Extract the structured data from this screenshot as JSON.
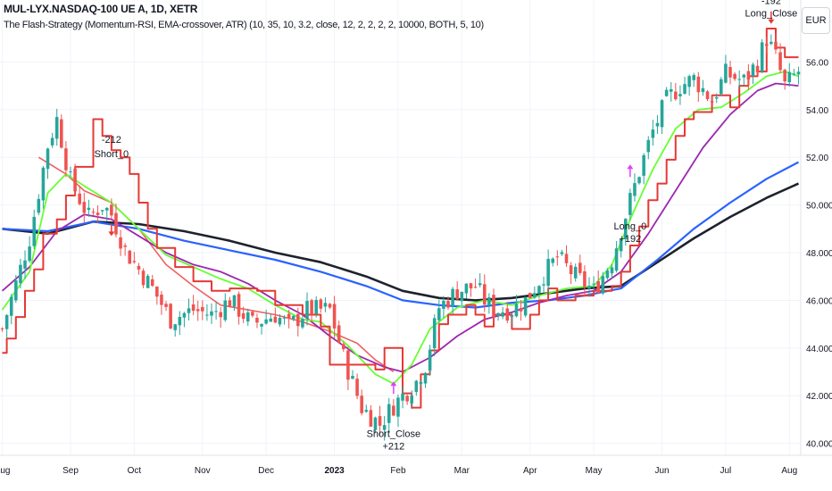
{
  "header": {
    "title": "MUL-LYX.NASDAQ-100 UE A, 1D, XETR",
    "subtitle": "The Flash-Strategy (Momentum-RSI, EMA-crossover, ATR) (10, 35, 10, 3.2, close, 12, 2, 2, 2, 2, 10000, BOTH, 5, 10)",
    "currency": "EUR"
  },
  "colors": {
    "up": "#26a69a",
    "down": "#ef5350",
    "ema_fast": "#66ff33",
    "ema_mid": "#9c27b0",
    "ema_slow": "#2962ff",
    "ema_long": "#1e222d",
    "stop": "#e53935",
    "stop_light": "#f06060",
    "marker": "#e040fb",
    "label": "#131722",
    "axis": "#131722",
    "grid": "#f0f3fa"
  },
  "chart_data": {
    "type": "candlestick",
    "title": "MUL-LYX.NASDAQ-100 UE A, 1D, XETR",
    "ylim": [
      39.5,
      58.6
    ],
    "y_ticks": [
      "40.000",
      "42.000",
      "44.000",
      "46.000",
      "48.000",
      "50.000",
      "52.00",
      "54.00",
      "56.00"
    ],
    "x_ticks": [
      "Aug",
      "Sep",
      "Oct",
      "Nov",
      "Dec",
      "2023",
      "Feb",
      "Mar",
      "Apr",
      "May",
      "Jun",
      "Jul",
      "Aug"
    ],
    "ohlc_anchor_closes": [
      [
        0,
        44.8
      ],
      [
        6,
        48.6
      ],
      [
        10,
        52.5
      ],
      [
        12,
        53.6
      ],
      [
        15,
        51.0
      ],
      [
        19,
        49.5
      ],
      [
        22,
        50.0
      ],
      [
        24,
        49.6
      ],
      [
        27,
        48.1
      ],
      [
        30,
        47.3
      ],
      [
        33,
        46.5
      ],
      [
        37,
        45.2
      ],
      [
        42,
        45.6
      ],
      [
        46,
        45.4
      ],
      [
        50,
        46.0
      ],
      [
        55,
        45.0
      ],
      [
        60,
        45.4
      ],
      [
        63,
        44.9
      ],
      [
        67,
        45.6
      ],
      [
        72,
        45.6
      ],
      [
        75,
        43.6
      ],
      [
        79,
        41.5
      ],
      [
        83,
        40.8
      ],
      [
        86,
        41.6
      ],
      [
        89,
        42.2
      ],
      [
        91,
        42.6
      ],
      [
        93,
        43.3
      ],
      [
        96,
        45.7
      ],
      [
        100,
        46.4
      ],
      [
        104,
        46.6
      ],
      [
        106,
        46.0
      ],
      [
        108,
        45.6
      ],
      [
        112,
        45.6
      ],
      [
        115,
        46.0
      ],
      [
        119,
        47.1
      ],
      [
        122,
        47.8
      ],
      [
        126,
        47.0
      ],
      [
        130,
        46.4
      ],
      [
        134,
        47.7
      ],
      [
        138,
        50.2
      ],
      [
        140,
        51.4
      ],
      [
        143,
        53.1
      ],
      [
        146,
        54.4
      ],
      [
        149,
        55.0
      ],
      [
        152,
        55.3
      ],
      [
        156,
        54.4
      ],
      [
        159,
        55.5
      ],
      [
        163,
        55.2
      ],
      [
        166,
        56.0
      ],
      [
        168,
        57.0
      ],
      [
        170,
        56.2
      ],
      [
        172,
        55.0
      ],
      [
        175,
        55.6
      ]
    ],
    "series": [
      {
        "name": "EMA fast (green)",
        "points": [
          [
            0,
            45.6
          ],
          [
            6,
            47.2
          ],
          [
            10,
            50.5
          ],
          [
            14,
            51.3
          ],
          [
            18,
            50.8
          ],
          [
            24,
            50.1
          ],
          [
            30,
            49.0
          ],
          [
            36,
            47.9
          ],
          [
            42,
            47.4
          ],
          [
            48,
            46.9
          ],
          [
            54,
            46.5
          ],
          [
            60,
            45.8
          ],
          [
            66,
            45.2
          ],
          [
            70,
            45.1
          ],
          [
            76,
            44.1
          ],
          [
            82,
            42.9
          ],
          [
            86,
            42.5
          ],
          [
            90,
            43.3
          ],
          [
            94,
            44.8
          ],
          [
            100,
            45.7
          ],
          [
            106,
            46.0
          ],
          [
            112,
            45.8
          ],
          [
            118,
            46.2
          ],
          [
            124,
            46.5
          ],
          [
            130,
            46.6
          ],
          [
            134,
            47.5
          ],
          [
            138,
            49.4
          ],
          [
            143,
            51.5
          ],
          [
            148,
            53.2
          ],
          [
            153,
            54.0
          ],
          [
            158,
            54.1
          ],
          [
            163,
            54.7
          ],
          [
            168,
            55.4
          ],
          [
            172,
            55.6
          ],
          [
            175,
            55.4
          ]
        ]
      },
      {
        "name": "EMA mid (purple)",
        "points": [
          [
            0,
            46.4
          ],
          [
            6,
            47.4
          ],
          [
            12,
            48.9
          ],
          [
            18,
            49.6
          ],
          [
            24,
            49.4
          ],
          [
            30,
            48.7
          ],
          [
            36,
            48.0
          ],
          [
            42,
            47.5
          ],
          [
            48,
            47.2
          ],
          [
            54,
            46.7
          ],
          [
            60,
            46.0
          ],
          [
            66,
            45.4
          ],
          [
            72,
            44.5
          ],
          [
            78,
            43.7
          ],
          [
            84,
            43.2
          ],
          [
            88,
            43.0
          ],
          [
            94,
            43.6
          ],
          [
            100,
            44.5
          ],
          [
            106,
            45.2
          ],
          [
            112,
            45.5
          ],
          [
            118,
            45.9
          ],
          [
            124,
            46.2
          ],
          [
            130,
            46.4
          ],
          [
            136,
            47.2
          ],
          [
            142,
            48.8
          ],
          [
            148,
            50.6
          ],
          [
            154,
            52.4
          ],
          [
            160,
            53.8
          ],
          [
            166,
            54.8
          ],
          [
            170,
            55.1
          ],
          [
            175,
            55.0
          ]
        ]
      },
      {
        "name": "EMA slow (blue)",
        "points": [
          [
            0,
            49.0
          ],
          [
            10,
            48.9
          ],
          [
            20,
            49.3
          ],
          [
            30,
            49.0
          ],
          [
            40,
            48.5
          ],
          [
            50,
            48.1
          ],
          [
            60,
            47.7
          ],
          [
            70,
            47.2
          ],
          [
            80,
            46.6
          ],
          [
            88,
            46.0
          ],
          [
            96,
            45.8
          ],
          [
            104,
            45.7
          ],
          [
            112,
            45.9
          ],
          [
            120,
            46.0
          ],
          [
            128,
            46.2
          ],
          [
            136,
            46.5
          ],
          [
            144,
            47.7
          ],
          [
            152,
            49.0
          ],
          [
            160,
            50.1
          ],
          [
            168,
            51.1
          ],
          [
            175,
            51.8
          ]
        ]
      },
      {
        "name": "EMA long (black)",
        "points": [
          [
            0,
            49.0
          ],
          [
            10,
            48.8
          ],
          [
            20,
            49.3
          ],
          [
            30,
            49.2
          ],
          [
            40,
            48.9
          ],
          [
            50,
            48.5
          ],
          [
            60,
            48.0
          ],
          [
            70,
            47.6
          ],
          [
            80,
            47.0
          ],
          [
            88,
            46.4
          ],
          [
            96,
            46.1
          ],
          [
            104,
            46.0
          ],
          [
            112,
            46.1
          ],
          [
            120,
            46.3
          ],
          [
            128,
            46.5
          ],
          [
            136,
            46.6
          ],
          [
            144,
            47.6
          ],
          [
            152,
            48.6
          ],
          [
            160,
            49.5
          ],
          [
            168,
            50.3
          ],
          [
            175,
            50.9
          ]
        ]
      },
      {
        "name": "Trailing stop lower (red)",
        "points": [
          [
            0,
            43.8
          ],
          [
            1,
            43.8
          ],
          [
            1,
            44.4
          ],
          [
            3,
            44.4
          ],
          [
            3,
            45.3
          ],
          [
            5,
            45.3
          ],
          [
            5,
            46.4
          ],
          [
            7,
            46.4
          ],
          [
            7,
            47.3
          ],
          [
            9,
            47.3
          ],
          [
            9,
            48.8
          ],
          [
            12,
            48.8
          ],
          [
            12,
            49.4
          ],
          [
            14,
            49.4
          ],
          [
            14,
            50.4
          ],
          [
            16,
            50.4
          ],
          [
            16,
            51.6
          ],
          [
            20,
            51.6
          ],
          [
            20,
            53.6
          ],
          [
            22,
            53.6
          ],
          [
            22,
            52.9
          ],
          [
            24,
            52.9
          ],
          [
            24,
            52.3
          ],
          [
            26,
            52.3
          ],
          [
            26,
            52.0
          ],
          [
            28,
            52.0
          ],
          [
            28,
            51.3
          ],
          [
            30,
            51.3
          ],
          [
            30,
            50.1
          ],
          [
            32,
            50.1
          ],
          [
            32,
            49.0
          ],
          [
            34,
            49.0
          ],
          [
            34,
            48.2
          ],
          [
            38,
            48.2
          ],
          [
            38,
            47.4
          ],
          [
            42,
            47.4
          ],
          [
            42,
            46.8
          ],
          [
            46,
            46.8
          ],
          [
            46,
            46.4
          ],
          [
            50,
            46.4
          ],
          [
            50,
            46.5
          ],
          [
            56,
            46.5
          ],
          [
            56,
            46.4
          ],
          [
            60,
            46.4
          ],
          [
            60,
            45.8
          ],
          [
            66,
            45.8
          ],
          [
            66,
            45.4
          ],
          [
            70,
            45.4
          ],
          [
            70,
            44.9
          ],
          [
            72,
            44.9
          ],
          [
            72,
            43.3
          ],
          [
            82,
            43.3
          ],
          [
            82,
            43.1
          ],
          [
            84,
            43.1
          ],
          [
            84,
            44.0
          ],
          [
            88,
            44.0
          ],
          [
            88,
            42.1
          ],
          [
            90,
            42.1
          ],
          [
            90,
            41.5
          ],
          [
            92,
            41.5
          ],
          [
            92,
            42.9
          ],
          [
            94,
            42.9
          ],
          [
            94,
            43.9
          ],
          [
            96,
            43.9
          ],
          [
            96,
            45.0
          ],
          [
            98,
            45.0
          ],
          [
            98,
            45.4
          ],
          [
            102,
            45.4
          ],
          [
            102,
            45.8
          ],
          [
            104,
            45.8
          ],
          [
            104,
            45.4
          ],
          [
            106,
            45.4
          ],
          [
            106,
            44.9
          ],
          [
            108,
            44.9
          ],
          [
            108,
            45.4
          ],
          [
            112,
            45.4
          ],
          [
            112,
            44.8
          ],
          [
            116,
            44.8
          ],
          [
            116,
            45.4
          ],
          [
            118,
            45.4
          ],
          [
            118,
            46.0
          ],
          [
            120,
            46.0
          ],
          [
            120,
            46.5
          ],
          [
            122,
            46.5
          ],
          [
            122,
            46.0
          ],
          [
            126,
            46.0
          ],
          [
            126,
            46.2
          ],
          [
            130,
            46.2
          ],
          [
            130,
            46.4
          ],
          [
            134,
            46.4
          ],
          [
            134,
            46.6
          ],
          [
            136,
            46.6
          ],
          [
            136,
            47.2
          ],
          [
            138,
            47.2
          ],
          [
            138,
            48.3
          ],
          [
            140,
            48.3
          ],
          [
            140,
            49.1
          ],
          [
            142,
            49.1
          ],
          [
            142,
            50.2
          ],
          [
            144,
            50.2
          ],
          [
            144,
            50.9
          ],
          [
            146,
            50.9
          ],
          [
            146,
            51.9
          ],
          [
            148,
            51.9
          ],
          [
            148,
            52.9
          ],
          [
            150,
            52.9
          ],
          [
            150,
            53.6
          ],
          [
            152,
            53.6
          ],
          [
            152,
            53.9
          ],
          [
            156,
            53.9
          ],
          [
            156,
            54.6
          ],
          [
            160,
            54.6
          ],
          [
            160,
            54.1
          ],
          [
            162,
            54.1
          ],
          [
            162,
            55.0
          ],
          [
            164,
            55.0
          ],
          [
            164,
            55.4
          ],
          [
            166,
            55.4
          ],
          [
            166,
            55.6
          ],
          [
            168,
            55.6
          ],
          [
            168,
            57.4
          ],
          [
            170,
            57.4
          ],
          [
            170,
            56.6
          ],
          [
            172,
            56.6
          ],
          [
            172,
            56.2
          ],
          [
            175,
            56.2
          ]
        ]
      },
      {
        "name": "Trailing stop upper (light red)",
        "points": [
          [
            8,
            52.0
          ],
          [
            14,
            51.3
          ],
          [
            18,
            50.6
          ],
          [
            24,
            50.1
          ],
          [
            30,
            49.0
          ],
          [
            36,
            47.5
          ],
          [
            42,
            46.6
          ],
          [
            48,
            45.8
          ],
          [
            54,
            45.6
          ],
          [
            60,
            45.4
          ],
          [
            66,
            45.1
          ],
          [
            72,
            44.7
          ],
          [
            78,
            44.2
          ],
          [
            82,
            43.5
          ],
          [
            86,
            43.0
          ]
        ]
      }
    ],
    "annotations": [
      {
        "text": "-212",
        "x": 24,
        "y": 52.3,
        "side": "above"
      },
      {
        "text": "Short_0",
        "x": 24,
        "y": 51.7,
        "side": "above"
      },
      {
        "text": "Short_Close",
        "x": 86,
        "y": 40.8,
        "side": "below"
      },
      {
        "text": "+212",
        "x": 86,
        "y": 40.8,
        "side": "below2"
      },
      {
        "text": "Long_0",
        "x": 138,
        "y": 49.5,
        "side": "below"
      },
      {
        "text": "+192",
        "x": 138,
        "y": 49.5,
        "side": "below2"
      },
      {
        "text": "-192",
        "x": 169,
        "y": 57.6,
        "side": "above2"
      },
      {
        "text": "Long_Close",
        "x": 169,
        "y": 57.6,
        "side": "above"
      }
    ],
    "trade_markers": [
      {
        "x": 24,
        "y": 48.7,
        "dir": "down"
      },
      {
        "x": 86,
        "y": 42.6,
        "dir": "up"
      },
      {
        "x": 138,
        "y": 51.7,
        "dir": "up"
      },
      {
        "x": 169,
        "y": 57.6,
        "dir": "down"
      }
    ],
    "x_tick_positions": [
      0,
      15,
      29,
      44,
      58,
      73,
      87,
      101,
      116,
      130,
      145,
      159,
      173
    ],
    "n_bars": 176
  }
}
